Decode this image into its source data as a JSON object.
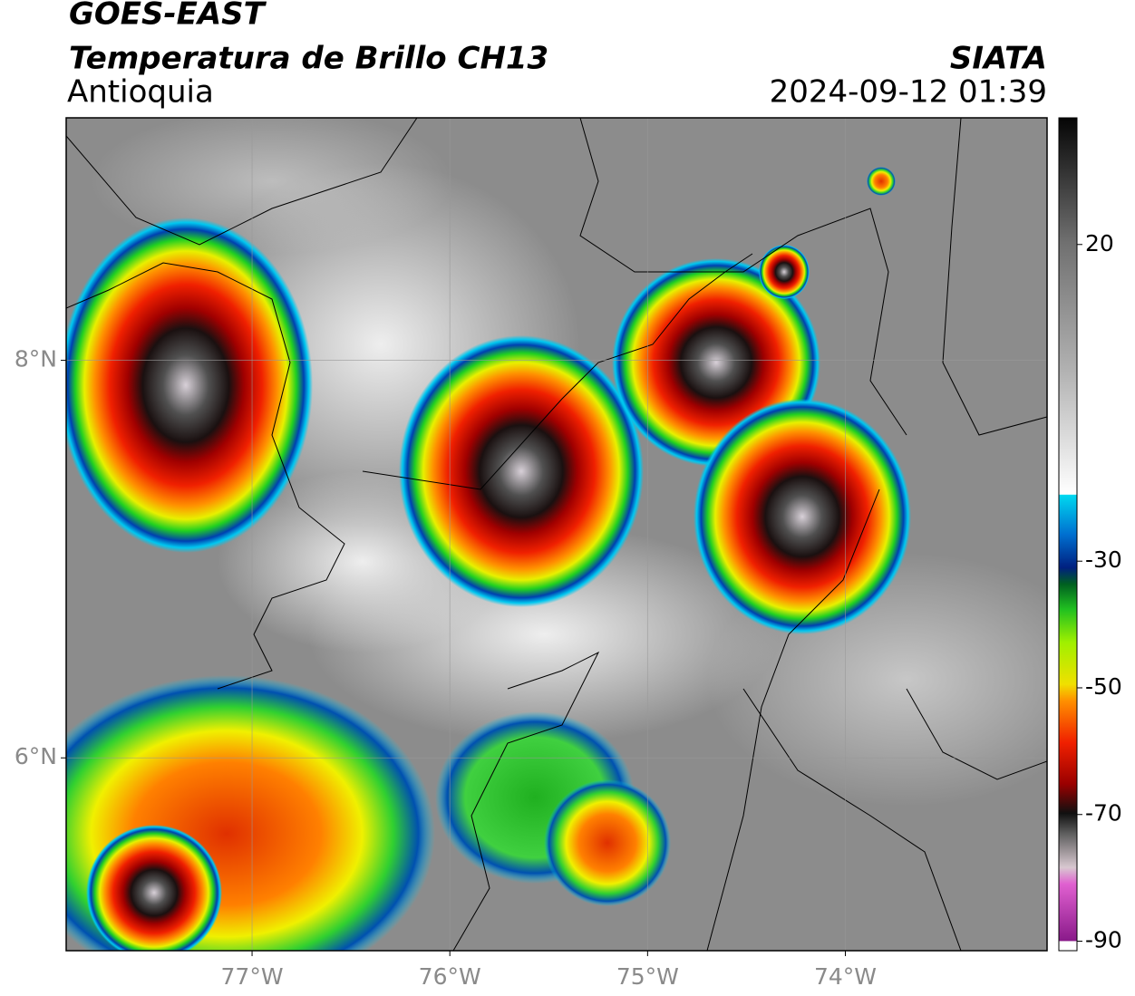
{
  "chart_data": {
    "type": "map",
    "title": "GOES-EAST",
    "subtitle": "Temperatura de Brillo CH13",
    "region": "Antioquia",
    "source": "SIATA",
    "timestamp": "2024-09-12 01:39",
    "xlim": [
      -77.94,
      -72.98
    ],
    "ylim": [
      5.03,
      9.22
    ],
    "xticks": [
      {
        "value": -77,
        "label": "77°W"
      },
      {
        "value": -76,
        "label": "76°W"
      },
      {
        "value": -75,
        "label": "75°W"
      },
      {
        "value": -74,
        "label": "74°W"
      }
    ],
    "yticks": [
      {
        "value": 8,
        "label": "8°N"
      },
      {
        "value": 6,
        "label": "6°N"
      }
    ],
    "colorbar": {
      "lim": [
        -91.5,
        40
      ],
      "ticks": [
        20,
        -30,
        -50,
        -70,
        -90
      ]
    },
    "grid": true
  }
}
